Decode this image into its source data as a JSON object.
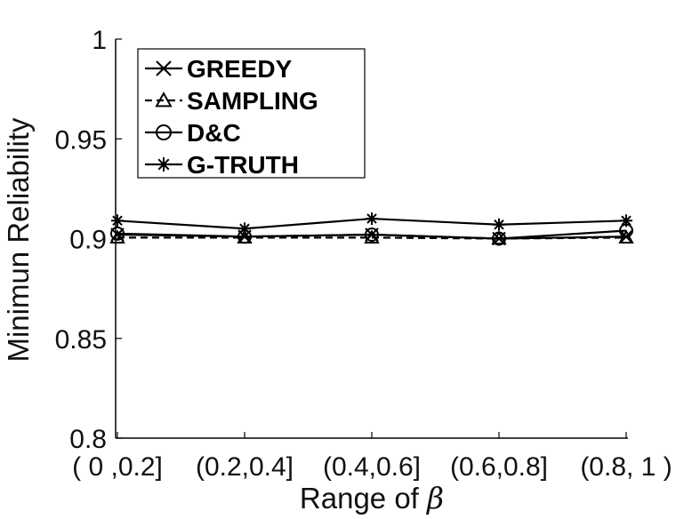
{
  "chart_data": {
    "type": "line",
    "categories": [
      "( 0 ,0.2]",
      "(0.2,0.4]",
      "(0.4,0.6]",
      "(0.6,0.8]",
      "(0.8, 1 )"
    ],
    "xlabel_text": "Range of ",
    "xlabel_symbol": "β",
    "ylabel": "Minimun Reliability",
    "ylim": [
      0.8,
      1
    ],
    "yticks": [
      "0.8",
      "0.85",
      "0.9",
      "0.95",
      "1"
    ],
    "ytick_values": [
      0.8,
      0.85,
      0.9,
      0.95,
      1.0
    ],
    "grid": false,
    "legend_position": "top-left",
    "series": [
      {
        "name": "GREEDY",
        "marker": "x",
        "dash": "solid",
        "values": [
          0.902,
          0.901,
          0.902,
          0.9,
          0.901
        ]
      },
      {
        "name": "SAMPLING",
        "marker": "triangle",
        "dash": "dashed",
        "values": [
          0.9005,
          0.9005,
          0.9005,
          0.9,
          0.9005
        ]
      },
      {
        "name": "D&C",
        "marker": "circle",
        "dash": "solid",
        "values": [
          0.9025,
          0.901,
          0.902,
          0.9,
          0.904
        ]
      },
      {
        "name": "G-TRUTH",
        "marker": "star",
        "dash": "solid",
        "values": [
          0.909,
          0.905,
          0.91,
          0.907,
          0.909
        ]
      }
    ],
    "line_color": "#000000"
  }
}
